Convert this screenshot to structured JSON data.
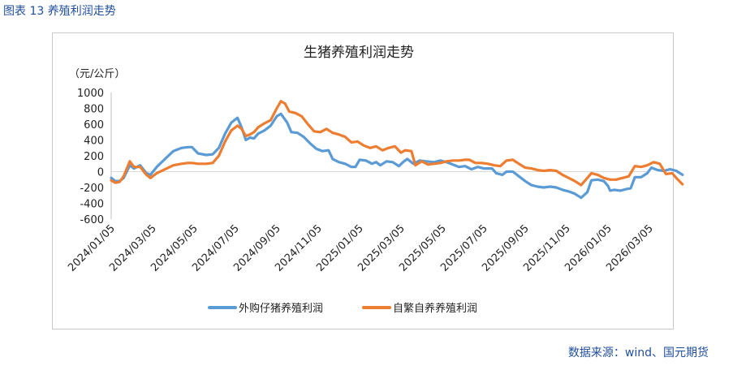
{
  "caption": "图表 13 养殖利润走势",
  "source": "数据来源：wind、国元期货",
  "colors": {
    "series1": "#5b9bd5",
    "series2": "#ed7d31",
    "caption": "#1f4e9c"
  },
  "chart_data": {
    "type": "line",
    "title": "生猪养殖利润走势",
    "unit_label": "（元/公斤）",
    "ylim": [
      -600,
      1000
    ],
    "yticks": [
      1000,
      800,
      600,
      400,
      200,
      0,
      -200,
      -400,
      -600
    ],
    "xtick_labels": [
      "2024/01/05",
      "2024/03/05",
      "2024/05/05",
      "2024/07/05",
      "2024/09/05",
      "2024/11/05",
      "2025/01/05",
      "2025/03/05",
      "2025/05/05",
      "2025/07/05",
      "2025/09/05",
      "2025/11/05",
      "2026/01/05",
      "2026/03/05"
    ],
    "x_start": "2024/01/05",
    "x_end": "2026/03/05",
    "series": [
      {
        "name": "外购仔猪养殖利润",
        "points": [
          [
            0,
            -80
          ],
          [
            0.1,
            -120
          ],
          [
            0.2,
            -120
          ],
          [
            0.3,
            -80
          ],
          [
            0.45,
            80
          ],
          [
            0.55,
            40
          ],
          [
            0.7,
            80
          ],
          [
            0.85,
            -20
          ],
          [
            0.95,
            -40
          ],
          [
            1.1,
            60
          ],
          [
            1.3,
            160
          ],
          [
            1.5,
            260
          ],
          [
            1.7,
            300
          ],
          [
            1.85,
            310
          ],
          [
            1.95,
            310
          ],
          [
            2.1,
            230
          ],
          [
            2.3,
            210
          ],
          [
            2.45,
            220
          ],
          [
            2.6,
            300
          ],
          [
            2.75,
            480
          ],
          [
            2.9,
            620
          ],
          [
            3.05,
            680
          ],
          [
            3.15,
            560
          ],
          [
            3.25,
            400
          ],
          [
            3.35,
            430
          ],
          [
            3.45,
            420
          ],
          [
            3.55,
            480
          ],
          [
            3.7,
            520
          ],
          [
            3.85,
            580
          ],
          [
            4.0,
            700
          ],
          [
            4.1,
            730
          ],
          [
            4.25,
            620
          ],
          [
            4.35,
            500
          ],
          [
            4.5,
            490
          ],
          [
            4.65,
            440
          ],
          [
            4.8,
            360
          ],
          [
            4.95,
            290
          ],
          [
            5.1,
            260
          ],
          [
            5.25,
            270
          ],
          [
            5.35,
            160
          ],
          [
            5.5,
            120
          ],
          [
            5.65,
            100
          ],
          [
            5.8,
            60
          ],
          [
            5.9,
            60
          ],
          [
            6.0,
            150
          ],
          [
            6.15,
            140
          ],
          [
            6.3,
            100
          ],
          [
            6.4,
            120
          ],
          [
            6.5,
            80
          ],
          [
            6.65,
            130
          ],
          [
            6.8,
            120
          ],
          [
            6.95,
            70
          ],
          [
            7.05,
            120
          ],
          [
            7.15,
            160
          ],
          [
            7.3,
            100
          ],
          [
            7.45,
            140
          ],
          [
            7.6,
            130
          ],
          [
            7.8,
            120
          ],
          [
            7.95,
            140
          ],
          [
            8.1,
            120
          ],
          [
            8.25,
            90
          ],
          [
            8.4,
            60
          ],
          [
            8.55,
            70
          ],
          [
            8.7,
            30
          ],
          [
            8.85,
            60
          ],
          [
            9.0,
            40
          ],
          [
            9.2,
            40
          ],
          [
            9.3,
            -20
          ],
          [
            9.45,
            -40
          ],
          [
            9.55,
            0
          ],
          [
            9.7,
            0
          ],
          [
            9.85,
            -60
          ],
          [
            10.0,
            -120
          ],
          [
            10.15,
            -170
          ],
          [
            10.3,
            -190
          ],
          [
            10.45,
            -200
          ],
          [
            10.6,
            -190
          ],
          [
            10.75,
            -200
          ],
          [
            10.9,
            -230
          ],
          [
            11.05,
            -250
          ],
          [
            11.2,
            -280
          ],
          [
            11.35,
            -330
          ],
          [
            11.5,
            -260
          ],
          [
            11.6,
            -110
          ],
          [
            11.75,
            -100
          ],
          [
            11.9,
            -120
          ],
          [
            12.0,
            -180
          ],
          [
            12.05,
            -240
          ],
          [
            12.15,
            -230
          ],
          [
            12.3,
            -240
          ],
          [
            12.45,
            -220
          ],
          [
            12.55,
            -210
          ],
          [
            12.65,
            -70
          ],
          [
            12.8,
            -70
          ],
          [
            12.95,
            -20
          ],
          [
            13.05,
            50
          ],
          [
            13.2,
            20
          ],
          [
            13.35,
            10
          ],
          [
            13.5,
            30
          ],
          [
            13.65,
            10
          ],
          [
            13.8,
            -40
          ]
        ]
      },
      {
        "name": "自繁自养养殖利润",
        "points": [
          [
            0,
            -110
          ],
          [
            0.1,
            -140
          ],
          [
            0.2,
            -130
          ],
          [
            0.3,
            -60
          ],
          [
            0.45,
            130
          ],
          [
            0.55,
            60
          ],
          [
            0.7,
            60
          ],
          [
            0.85,
            -40
          ],
          [
            0.95,
            -80
          ],
          [
            1.1,
            -20
          ],
          [
            1.3,
            30
          ],
          [
            1.5,
            80
          ],
          [
            1.7,
            100
          ],
          [
            1.85,
            110
          ],
          [
            1.95,
            110
          ],
          [
            2.1,
            100
          ],
          [
            2.3,
            100
          ],
          [
            2.45,
            110
          ],
          [
            2.6,
            200
          ],
          [
            2.75,
            380
          ],
          [
            2.9,
            520
          ],
          [
            3.05,
            580
          ],
          [
            3.15,
            540
          ],
          [
            3.25,
            450
          ],
          [
            3.35,
            470
          ],
          [
            3.45,
            500
          ],
          [
            3.55,
            560
          ],
          [
            3.7,
            610
          ],
          [
            3.85,
            650
          ],
          [
            4.0,
            800
          ],
          [
            4.1,
            890
          ],
          [
            4.2,
            860
          ],
          [
            4.3,
            760
          ],
          [
            4.45,
            740
          ],
          [
            4.6,
            700
          ],
          [
            4.75,
            600
          ],
          [
            4.9,
            510
          ],
          [
            5.05,
            500
          ],
          [
            5.2,
            540
          ],
          [
            5.35,
            490
          ],
          [
            5.5,
            470
          ],
          [
            5.65,
            440
          ],
          [
            5.8,
            370
          ],
          [
            5.95,
            380
          ],
          [
            6.1,
            330
          ],
          [
            6.25,
            300
          ],
          [
            6.4,
            320
          ],
          [
            6.55,
            270
          ],
          [
            6.7,
            300
          ],
          [
            6.85,
            320
          ],
          [
            7.0,
            240
          ],
          [
            7.1,
            270
          ],
          [
            7.25,
            260
          ],
          [
            7.35,
            80
          ],
          [
            7.5,
            130
          ],
          [
            7.65,
            90
          ],
          [
            7.8,
            100
          ],
          [
            7.95,
            110
          ],
          [
            8.1,
            130
          ],
          [
            8.25,
            140
          ],
          [
            8.4,
            140
          ],
          [
            8.55,
            150
          ],
          [
            8.65,
            150
          ],
          [
            8.8,
            110
          ],
          [
            8.95,
            110
          ],
          [
            9.1,
            100
          ],
          [
            9.25,
            80
          ],
          [
            9.4,
            70
          ],
          [
            9.55,
            140
          ],
          [
            9.7,
            150
          ],
          [
            9.85,
            100
          ],
          [
            10.0,
            50
          ],
          [
            10.15,
            40
          ],
          [
            10.3,
            20
          ],
          [
            10.45,
            10
          ],
          [
            10.6,
            20
          ],
          [
            10.75,
            10
          ],
          [
            10.9,
            -40
          ],
          [
            11.05,
            -80
          ],
          [
            11.2,
            -120
          ],
          [
            11.35,
            -170
          ],
          [
            11.5,
            -80
          ],
          [
            11.6,
            -20
          ],
          [
            11.75,
            -40
          ],
          [
            11.9,
            -80
          ],
          [
            12.05,
            -100
          ],
          [
            12.2,
            -100
          ],
          [
            12.35,
            -80
          ],
          [
            12.5,
            -60
          ],
          [
            12.65,
            70
          ],
          [
            12.8,
            60
          ],
          [
            12.95,
            80
          ],
          [
            13.1,
            120
          ],
          [
            13.25,
            100
          ],
          [
            13.4,
            -30
          ],
          [
            13.55,
            -20
          ],
          [
            13.65,
            -80
          ],
          [
            13.8,
            -160
          ]
        ]
      }
    ]
  }
}
